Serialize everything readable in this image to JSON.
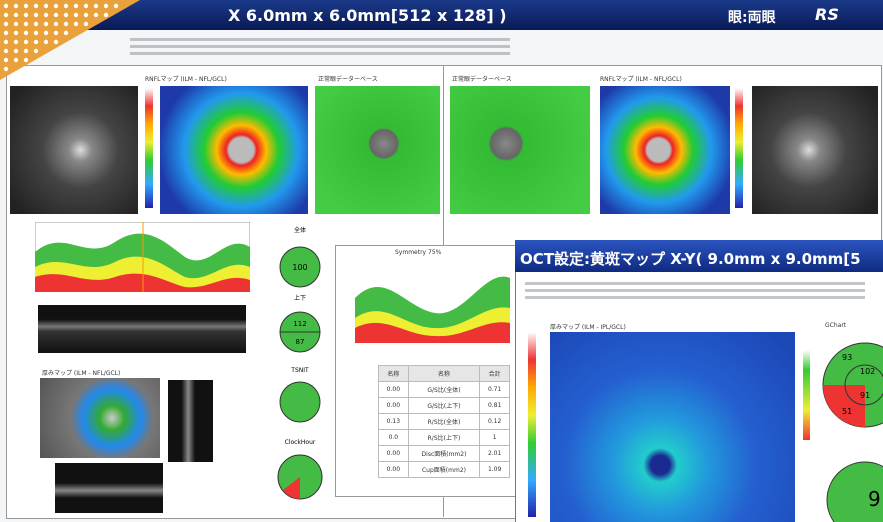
{
  "header": {
    "title": "X 6.0mm x 6.0mm[512 x 128] )",
    "eye": "眼:両眼",
    "logo": "RS"
  },
  "left": {
    "rnfl_map": "RNFLマップ (ILM - NFL/GCL)",
    "database": "正常眼データーベース",
    "thickness_map": "厚みマップ (ILM - NFL/GCL)"
  },
  "right": {
    "rnfl_map": "RNFLマップ (ILM - NFL/GCL)",
    "database": "正常眼データーベース"
  },
  "circles": {
    "total_title": "全体",
    "total": "100",
    "ul_title": "上下",
    "upper": "112",
    "lower": "87",
    "tsnit_title": "TSNIT",
    "clock_title": "ClockHour"
  },
  "symmetry": {
    "title": "Symmetry 75%"
  },
  "table": {
    "rows": [
      [
        "名称",
        "名称",
        "合計"
      ],
      [
        "0.00",
        "G/S比(全体)",
        "0.71"
      ],
      [
        "0.00",
        "G/S比(上下)",
        "0.81"
      ],
      [
        "0.13",
        "R/S比(全体)",
        "0.12"
      ],
      [
        "0.0",
        "R/S比(上下)",
        "1"
      ],
      [
        "0.00",
        "Disc面積(mm2)",
        "2.01"
      ],
      [
        "0.00",
        "Cup面積(mm2)",
        "1.09"
      ]
    ]
  },
  "overlay": {
    "title": "OCT設定:黄斑マップ X-Y( 9.0mm x 9.0mm[5",
    "map_label": "厚みマップ (ILM - IPL/GCL)",
    "gchart": "GChart",
    "values": [
      "93",
      "102",
      "91",
      "51"
    ],
    "big": "9"
  }
}
